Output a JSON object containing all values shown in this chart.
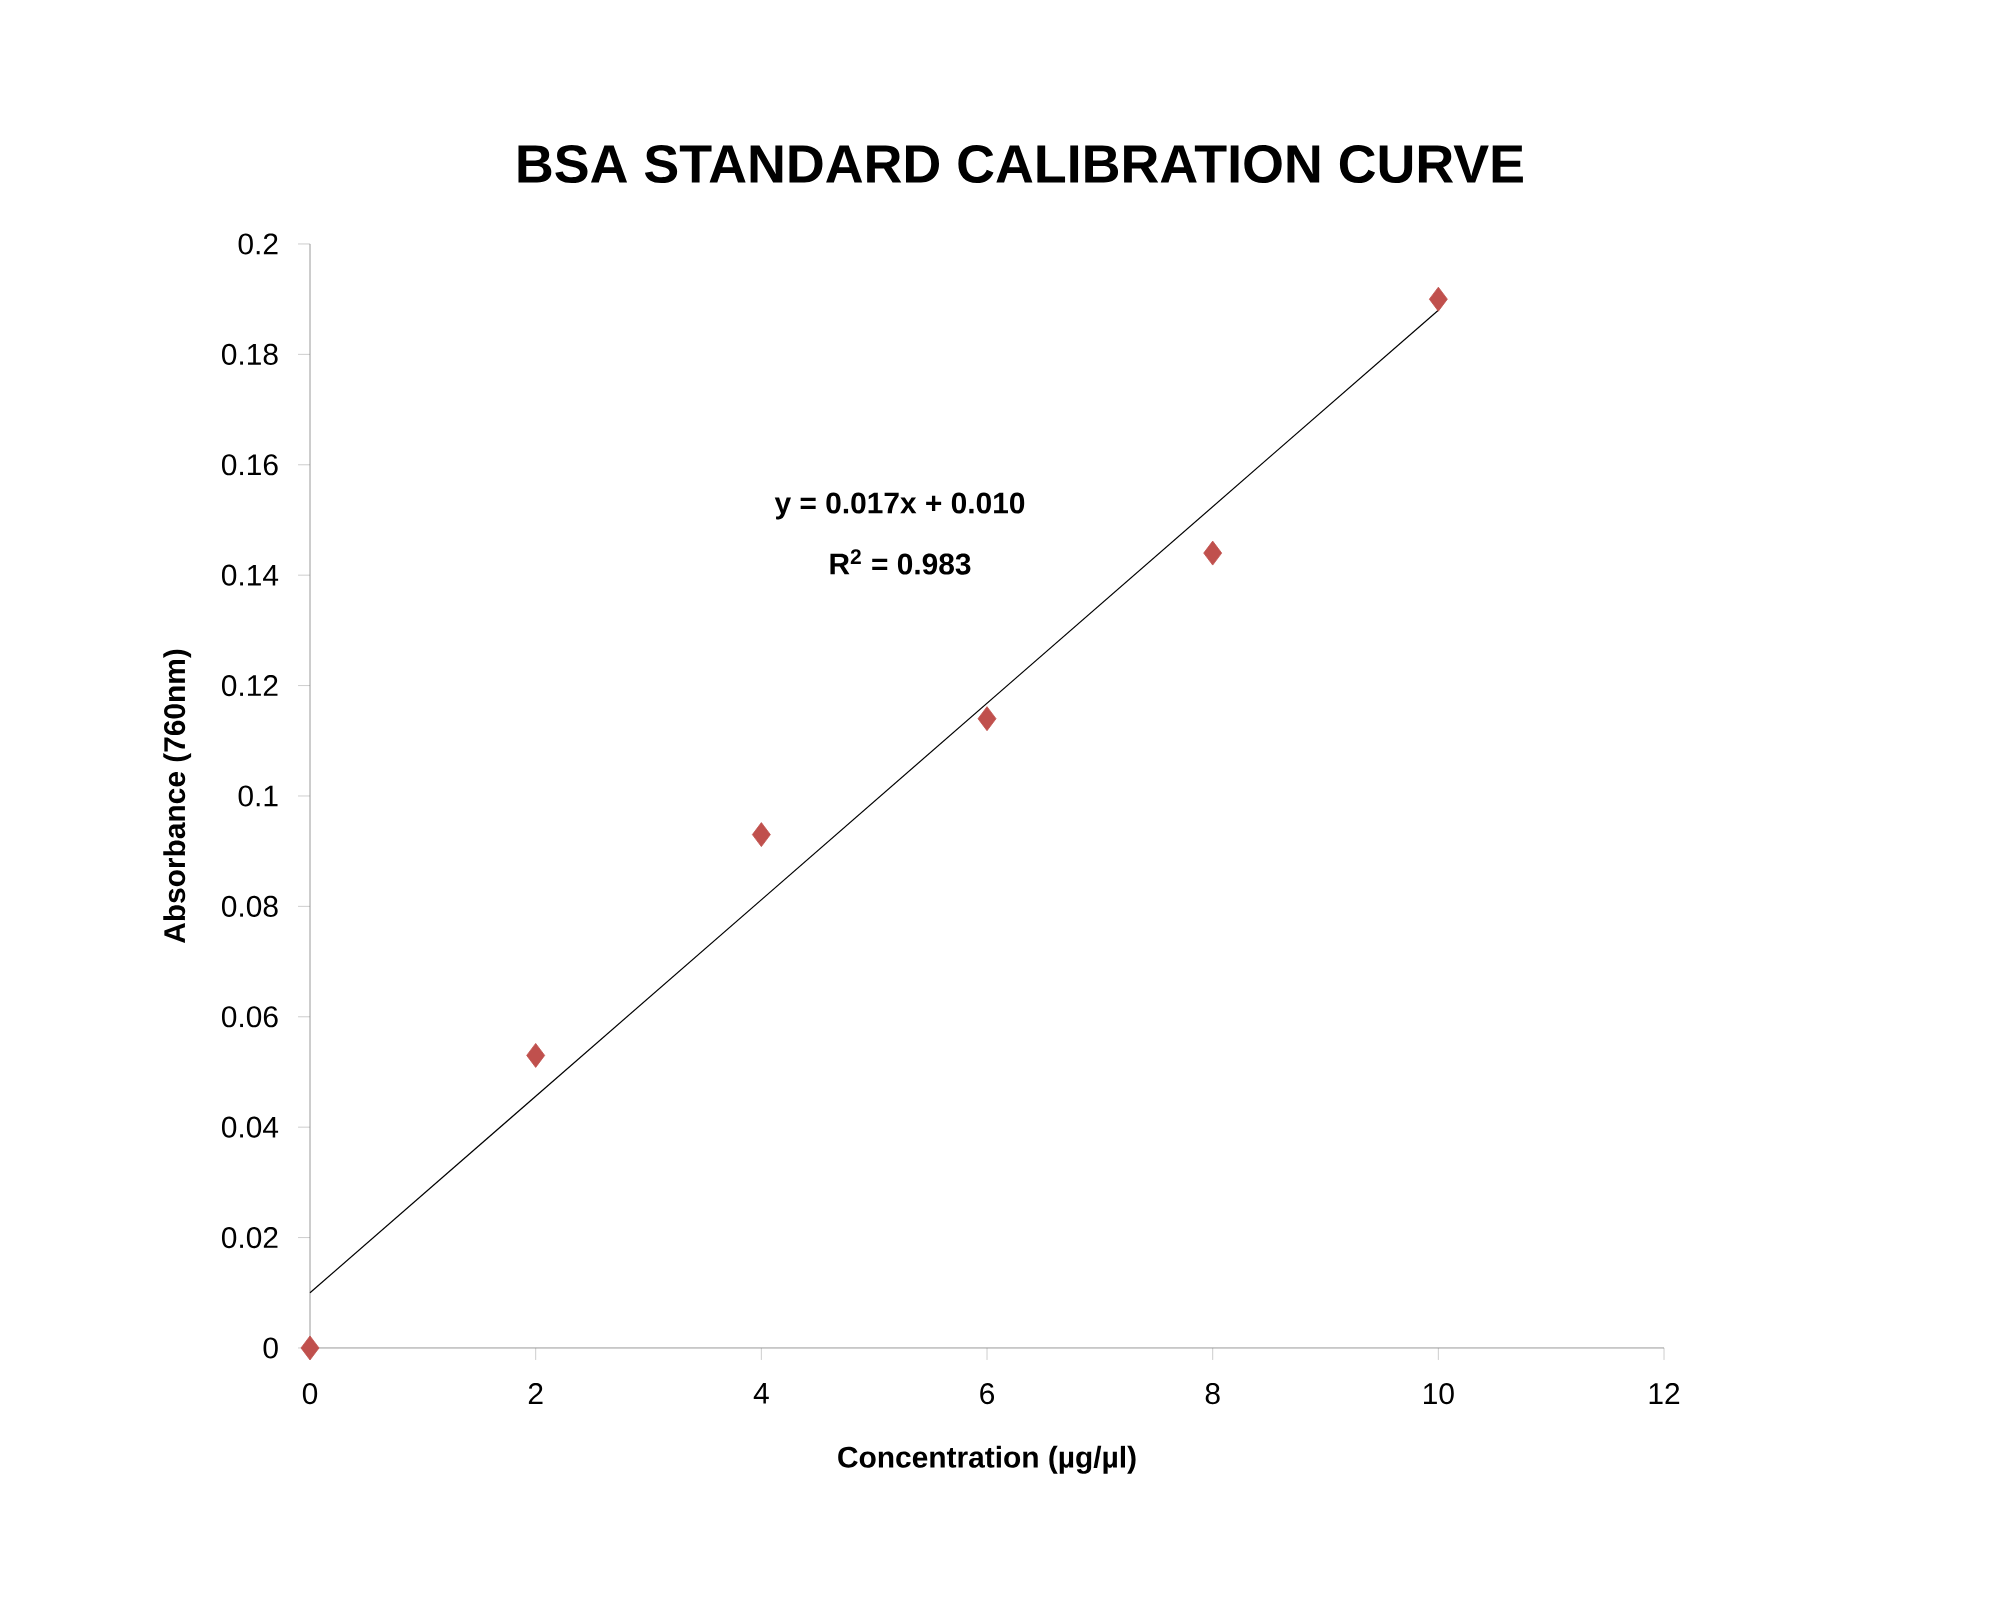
{
  "chart_data": {
    "type": "scatter",
    "title": "BSA STANDARD CALIBRATION CURVE",
    "xlabel": "Concentration (µg/µl)",
    "ylabel": "Absorbance  (760nm)",
    "annotations": [
      "y = 0.017x + 0.010",
      "R$^{2}$ = 0.983"
    ],
    "xlim": [
      0,
      12
    ],
    "xticks": [
      0,
      2,
      4,
      6,
      8,
      10,
      12
    ],
    "ylim": [
      0,
      0.2
    ],
    "yticks": [
      0,
      0.02,
      0.04,
      0.06,
      0.08,
      0.1,
      0.12,
      0.14,
      0.16,
      0.18,
      0.2
    ],
    "grid": false,
    "marker": "diamond",
    "series": [
      {
        "color": "#c0504d",
        "x": [
          0,
          2,
          4,
          6,
          8,
          10
        ],
        "values": [
          0,
          0.053,
          0.093,
          0.114,
          0.144,
          0.19
        ]
      },
      {
        "type": "line",
        "color": "#000000",
        "marker": "none",
        "x": [
          0,
          10
        ],
        "values": [
          0.01,
          0.188
        ]
      }
    ]
  }
}
